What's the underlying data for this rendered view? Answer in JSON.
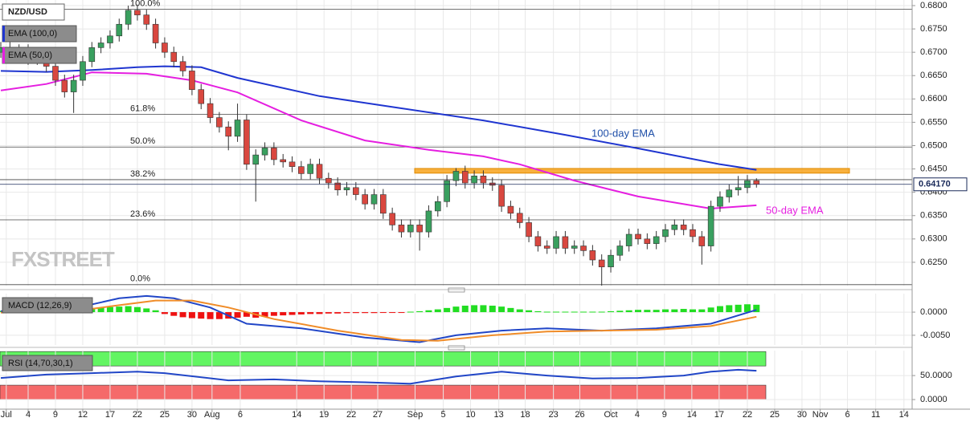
{
  "chart_data": [
    {
      "type": "candlestick",
      "title": "NZD/USD",
      "logo": "FXSTREET",
      "xlim": [
        -0.09,
        100.1
      ],
      "xticks": [
        {
          "value": 0.6,
          "label": "Jul"
        },
        {
          "value": 3,
          "label": "4"
        },
        {
          "value": 6,
          "label": "9"
        },
        {
          "value": 9,
          "label": "12"
        },
        {
          "value": 12,
          "label": "17"
        },
        {
          "value": 15,
          "label": "22"
        },
        {
          "value": 18,
          "label": "25"
        },
        {
          "value": 21,
          "label": "30"
        },
        {
          "value": 23.2,
          "label": "Aug"
        },
        {
          "value": 26.3,
          "label": "6"
        },
        {
          "value": 32.5,
          "label": "14"
        },
        {
          "value": 35.5,
          "label": "19"
        },
        {
          "value": 38.5,
          "label": "22"
        },
        {
          "value": 41.4,
          "label": "27"
        },
        {
          "value": 45.5,
          "label": "Sep"
        },
        {
          "value": 48.6,
          "label": "5"
        },
        {
          "value": 51.6,
          "label": "10"
        },
        {
          "value": 54.7,
          "label": "13"
        },
        {
          "value": 57.6,
          "label": "18"
        },
        {
          "value": 60.7,
          "label": "23"
        },
        {
          "value": 63.6,
          "label": "26"
        },
        {
          "value": 67,
          "label": "Oct"
        },
        {
          "value": 69.9,
          "label": "4"
        },
        {
          "value": 72.9,
          "label": "9"
        },
        {
          "value": 75.9,
          "label": "14"
        },
        {
          "value": 78.9,
          "label": "17"
        },
        {
          "value": 82,
          "label": "22"
        },
        {
          "value": 85,
          "label": "25"
        },
        {
          "value": 88,
          "label": "30"
        },
        {
          "value": 90,
          "label": "Nov"
        },
        {
          "value": 93,
          "label": "6"
        },
        {
          "value": 96.1,
          "label": "11"
        },
        {
          "value": 99.2,
          "label": "14"
        }
      ],
      "ylim": [
        0.62,
        0.6812
      ],
      "yticks": [
        {
          "value": 0.68,
          "label": "0.6800"
        },
        {
          "value": 0.675,
          "label": "0.6750"
        },
        {
          "value": 0.67,
          "label": "0.6700"
        },
        {
          "value": 0.665,
          "label": "0.6650"
        },
        {
          "value": 0.66,
          "label": "0.6600"
        },
        {
          "value": 0.655,
          "label": "0.6550"
        },
        {
          "value": 0.65,
          "label": "0.6500"
        },
        {
          "value": 0.645,
          "label": "0.6450"
        },
        {
          "value": 0.64,
          "label": "0.6400"
        },
        {
          "value": 0.635,
          "label": "0.6350"
        },
        {
          "value": 0.63,
          "label": "0.6300"
        },
        {
          "value": 0.625,
          "label": "0.6250"
        }
      ],
      "grid": true,
      "up_color": "#39a05f",
      "down_color": "#d9473f",
      "x": [
        0,
        1,
        2,
        3,
        4,
        5,
        6,
        7,
        8,
        9,
        10,
        11,
        12,
        13,
        14,
        15,
        16,
        17,
        18,
        19,
        20,
        21,
        22,
        23,
        24,
        25,
        26,
        27,
        28,
        29,
        30,
        31,
        32,
        33,
        34,
        35,
        36,
        37,
        38,
        39,
        40,
        41,
        42,
        43,
        44,
        45,
        46,
        47,
        48,
        49,
        50,
        51,
        52,
        53,
        54,
        55,
        56,
        57,
        58,
        59,
        60,
        61,
        62,
        63,
        64,
        65,
        66,
        67,
        68,
        69,
        70,
        71,
        72,
        73,
        74,
        75,
        76,
        77,
        78,
        79,
        80,
        81,
        82,
        83
      ],
      "open": [
        0.67,
        0.671,
        0.669,
        0.6705,
        0.6685,
        0.669,
        0.667,
        0.664,
        0.6615,
        0.664,
        0.668,
        0.671,
        0.672,
        0.6735,
        0.676,
        0.679,
        0.678,
        0.676,
        0.672,
        0.67,
        0.668,
        0.666,
        0.662,
        0.659,
        0.656,
        0.654,
        0.652,
        0.6555,
        0.646,
        0.648,
        0.6495,
        0.647,
        0.6465,
        0.6455,
        0.644,
        0.646,
        0.643,
        0.642,
        0.6405,
        0.641,
        0.6395,
        0.6375,
        0.6395,
        0.6355,
        0.633,
        0.6315,
        0.633,
        0.6315,
        0.636,
        0.638,
        0.6425,
        0.6445,
        0.642,
        0.6435,
        0.642,
        0.6415,
        0.637,
        0.6355,
        0.6335,
        0.6305,
        0.6285,
        0.628,
        0.6305,
        0.628,
        0.6285,
        0.6275,
        0.6255,
        0.624,
        0.6265,
        0.6285,
        0.631,
        0.63,
        0.629,
        0.6305,
        0.632,
        0.633,
        0.632,
        0.6305,
        0.6285,
        0.637,
        0.639,
        0.6405,
        0.641,
        0.6425
      ],
      "high": [
        0.6722,
        0.6722,
        0.6717,
        0.6717,
        0.6702,
        0.6702,
        0.6682,
        0.6652,
        0.6652,
        0.6692,
        0.6722,
        0.6732,
        0.6747,
        0.6772,
        0.68,
        0.6802,
        0.6792,
        0.6772,
        0.6732,
        0.6712,
        0.6692,
        0.6672,
        0.6632,
        0.6602,
        0.6572,
        0.6552,
        0.659,
        0.6567,
        0.6492,
        0.6507,
        0.6507,
        0.6482,
        0.6477,
        0.6467,
        0.6472,
        0.6472,
        0.6442,
        0.6432,
        0.6422,
        0.6422,
        0.6407,
        0.6407,
        0.6407,
        0.6367,
        0.6342,
        0.6342,
        0.6342,
        0.6372,
        0.6392,
        0.6437,
        0.6452,
        0.6457,
        0.6447,
        0.6447,
        0.6432,
        0.6427,
        0.6382,
        0.6367,
        0.6347,
        0.6317,
        0.6297,
        0.6317,
        0.6317,
        0.6297,
        0.6297,
        0.6287,
        0.6267,
        0.6277,
        0.6297,
        0.6322,
        0.6322,
        0.6312,
        0.6317,
        0.6332,
        0.6342,
        0.6342,
        0.6332,
        0.6317,
        0.6382,
        0.6402,
        0.6417,
        0.6435,
        0.6437,
        0.643
      ],
      "low": [
        0.6688,
        0.6678,
        0.6678,
        0.6673,
        0.6673,
        0.6658,
        0.6628,
        0.6603,
        0.657,
        0.6628,
        0.6668,
        0.6698,
        0.6708,
        0.6723,
        0.6748,
        0.6768,
        0.6748,
        0.6708,
        0.6688,
        0.6668,
        0.6648,
        0.6608,
        0.6578,
        0.6548,
        0.6528,
        0.649,
        0.6508,
        0.6448,
        0.638,
        0.6468,
        0.6458,
        0.6453,
        0.6443,
        0.6428,
        0.6428,
        0.6418,
        0.6408,
        0.6393,
        0.6393,
        0.6383,
        0.6363,
        0.6363,
        0.6343,
        0.6318,
        0.6303,
        0.6303,
        0.6275,
        0.6303,
        0.6348,
        0.6368,
        0.6413,
        0.6408,
        0.6408,
        0.6408,
        0.6403,
        0.6358,
        0.6343,
        0.6323,
        0.6293,
        0.6273,
        0.6268,
        0.6268,
        0.6268,
        0.6268,
        0.6263,
        0.6243,
        0.62,
        0.6228,
        0.6253,
        0.6273,
        0.6288,
        0.6278,
        0.6278,
        0.6293,
        0.6308,
        0.6308,
        0.6293,
        0.6245,
        0.6273,
        0.6358,
        0.6378,
        0.6393,
        0.6398,
        0.641
      ],
      "close": [
        0.671,
        0.669,
        0.6705,
        0.6685,
        0.669,
        0.667,
        0.664,
        0.6615,
        0.664,
        0.668,
        0.671,
        0.672,
        0.6735,
        0.676,
        0.679,
        0.678,
        0.676,
        0.672,
        0.67,
        0.668,
        0.666,
        0.662,
        0.659,
        0.656,
        0.654,
        0.652,
        0.6555,
        0.646,
        0.648,
        0.6495,
        0.647,
        0.6465,
        0.6455,
        0.644,
        0.646,
        0.643,
        0.642,
        0.6405,
        0.641,
        0.6395,
        0.6375,
        0.6395,
        0.6355,
        0.633,
        0.6315,
        0.633,
        0.6315,
        0.636,
        0.638,
        0.6425,
        0.6445,
        0.642,
        0.6435,
        0.642,
        0.6415,
        0.637,
        0.6355,
        0.6335,
        0.6305,
        0.6285,
        0.628,
        0.6305,
        0.628,
        0.6285,
        0.6275,
        0.6255,
        0.624,
        0.6265,
        0.6285,
        0.631,
        0.63,
        0.629,
        0.6305,
        0.632,
        0.633,
        0.632,
        0.6305,
        0.6285,
        0.637,
        0.639,
        0.6405,
        0.641,
        0.6425,
        0.6417
      ],
      "series": [
        {
          "name": "EMA (100,0)",
          "color": "#1f35d0",
          "x": [
            0,
            5,
            10,
            15,
            18,
            22,
            26,
            35,
            44,
            53,
            62,
            70,
            79,
            83
          ],
          "values": [
            0.666,
            0.6658,
            0.6662,
            0.6668,
            0.667,
            0.6668,
            0.6645,
            0.6606,
            0.658,
            0.6554,
            0.6523,
            0.6494,
            0.646,
            0.6448
          ]
        },
        {
          "name": "EMA (50,0)",
          "color": "#e51ee0",
          "x": [
            0,
            5,
            10,
            16,
            21,
            26,
            33,
            40,
            47,
            53,
            57,
            63,
            70,
            78,
            83
          ],
          "values": [
            0.6618,
            0.6632,
            0.6657,
            0.6654,
            0.664,
            0.6614,
            0.6554,
            0.6511,
            0.6491,
            0.6477,
            0.646,
            0.6425,
            0.6391,
            0.6365,
            0.6372
          ]
        }
      ],
      "fib_levels": [
        {
          "value": 0.6792,
          "label": "100.0%"
        },
        {
          "value": 0.6567,
          "label": "61.8%"
        },
        {
          "value": 0.6497,
          "label": "50.0%"
        },
        {
          "value": 0.6427,
          "label": "38.2%"
        },
        {
          "value": 0.6341,
          "label": "23.6%"
        },
        {
          "value": 0.6202,
          "label": "0.0%"
        }
      ],
      "zone": {
        "low": 0.6441,
        "high": 0.6451,
        "color": "#f7a21b"
      },
      "last_price": {
        "value": 0.6417,
        "label": "0.64170"
      },
      "annotations": [
        {
          "text": "100-day EMA",
          "color": "#1f4fa8"
        },
        {
          "text": "50-day EMA",
          "color": "#e51ee0"
        }
      ]
    },
    {
      "type": "macd",
      "title": "MACD (12,26,9)",
      "ylim": [
        -0.0071,
        0.004
      ],
      "yticks": [
        {
          "value": 0,
          "label": "0.0000"
        },
        {
          "value": -0.005,
          "label": "-0.0050"
        }
      ],
      "histogram": {
        "up_color": "#22dd22",
        "down_color": "#ee1111",
        "values": [
          0.0003,
          0.0003,
          0.0004,
          0.0004,
          0.0005,
          0.0004,
          0.0003,
          0.0002,
          0.0003,
          0.0005,
          0.0008,
          0.001,
          0.0011,
          0.0012,
          0.0013,
          0.0011,
          0.0008,
          0.0004,
          -0.0004,
          -0.0008,
          -0.0011,
          -0.0013,
          -0.0014,
          -0.0015,
          -0.0015,
          -0.0014,
          -0.0012,
          -0.001,
          -0.0012,
          -0.001,
          -0.0008,
          -0.0007,
          -0.0006,
          -0.0005,
          -0.0004,
          -0.0004,
          -0.0003,
          -0.0003,
          -0.0002,
          -0.0002,
          -0.0002,
          -0.0002,
          -0.0001,
          -0.0001,
          -0.0001,
          0.0001,
          0.0002,
          0.0004,
          0.0006,
          0.0009,
          0.0012,
          0.0014,
          0.0015,
          0.0015,
          0.0014,
          0.0012,
          0.0009,
          0.0006,
          0.0004,
          0.0002,
          0.0001,
          0.0001,
          0.0001,
          0.0001,
          0.0001,
          0.0001,
          0.0001,
          0.0002,
          0.0003,
          0.0004,
          0.0005,
          0.0005,
          0.0005,
          0.0006,
          0.0006,
          0.0007,
          0.0006,
          0.0006,
          0.001,
          0.0013,
          0.0015,
          0.0016,
          0.0017,
          0.0016
        ]
      },
      "series": [
        {
          "color": "#2146c7",
          "x": [
            0,
            8,
            13,
            16,
            19,
            23,
            27,
            33,
            40,
            46,
            50,
            55,
            60,
            66,
            72,
            78,
            83
          ],
          "values": [
            0.0002,
            0.0008,
            0.003,
            0.0035,
            0.003,
            0.001,
            -0.0025,
            -0.0035,
            -0.0055,
            -0.0065,
            -0.005,
            -0.004,
            -0.0035,
            -0.004,
            -0.0035,
            -0.0025,
            0.0005
          ]
        },
        {
          "color": "#f08c28",
          "x": [
            0,
            8,
            13,
            17,
            21,
            25,
            30,
            37,
            44,
            48,
            54,
            60,
            66,
            72,
            78,
            83
          ],
          "values": [
            -0.0001,
            0.0002,
            0.0015,
            0.0025,
            0.0025,
            0.001,
            -0.0015,
            -0.004,
            -0.006,
            -0.0062,
            -0.005,
            -0.0042,
            -0.004,
            -0.0038,
            -0.003,
            -0.001
          ]
        }
      ]
    },
    {
      "type": "line",
      "title": "RSI (14,70,30,1)",
      "ylim": [
        -20,
        102
      ],
      "yticks": [
        {
          "value": 50,
          "label": "50.0000"
        },
        {
          "value": 0,
          "label": "0.0000"
        }
      ],
      "bands": [
        {
          "range": [
            70,
            100
          ],
          "color": "#62f562"
        },
        {
          "range": [
            0,
            30
          ],
          "color": "#f56a6a"
        }
      ],
      "series": [
        {
          "color": "#2146c7",
          "x": [
            0,
            5,
            10,
            15,
            18,
            25,
            30,
            35,
            40,
            45,
            50,
            55,
            60,
            65,
            70,
            75,
            78,
            81,
            83
          ],
          "values": [
            45,
            52,
            55,
            58,
            55,
            40,
            42,
            38,
            36,
            33,
            48,
            58,
            50,
            44,
            45,
            50,
            58,
            62,
            60
          ]
        }
      ]
    }
  ]
}
